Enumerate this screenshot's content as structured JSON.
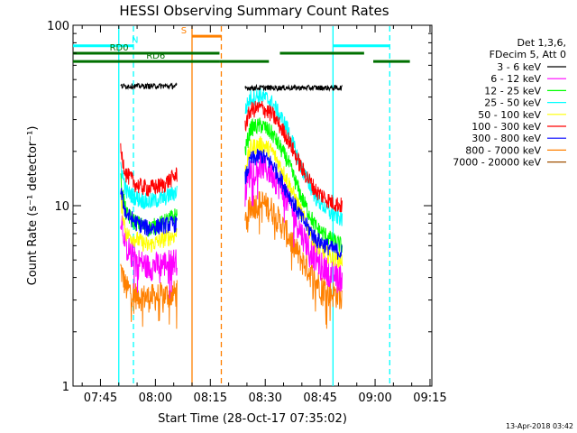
{
  "chart_data": {
    "type": "line",
    "title": "HESSI Observing Summary Count Rates",
    "xlabel": "Start Time (28-Oct-17 07:35:02)",
    "ylabel": "Count Rate (s⁻¹ detector⁻¹)",
    "yscale": "log",
    "ylim": [
      1,
      100
    ],
    "xlim_minutes": [
      37.5,
      135.5
    ],
    "x_ticks": [
      {
        "m": 45,
        "label": "07:45"
      },
      {
        "m": 60,
        "label": "08:00"
      },
      {
        "m": 75,
        "label": "08:15"
      },
      {
        "m": 90,
        "label": "08:30"
      },
      {
        "m": 105,
        "label": "08:45"
      },
      {
        "m": 120,
        "label": "09:00"
      },
      {
        "m": 135,
        "label": "09:15"
      }
    ],
    "y_ticks": [
      {
        "v": 1,
        "label": "1"
      },
      {
        "v": 10,
        "label": "10"
      },
      {
        "v": 100,
        "label": "100"
      }
    ],
    "legend": {
      "placement": "right",
      "header": [
        "Det 1,3,6,",
        "FDecim 5, Att 0"
      ]
    },
    "series": [
      {
        "name": "3 - 6 keV",
        "color": "#000000",
        "segments": [
          {
            "x": [
              50.5,
              57,
              64,
              66
            ],
            "y": [
              46,
              46,
              46,
              46
            ]
          },
          {
            "x": [
              84.5,
              92,
              100,
              107,
              111
            ],
            "y": [
              45,
              45,
              45,
              45,
              45
            ]
          }
        ]
      },
      {
        "name": "6 - 12 keV",
        "color": "#ff00ff",
        "segments": [
          {
            "x": [
              50.5,
              52,
              55,
              58,
              62,
              66
            ],
            "y": [
              9,
              6,
              5,
              4.6,
              4.8,
              5
            ]
          },
          {
            "x": [
              84.5,
              86,
              89,
              92,
              96,
              100,
              104,
              108,
              111
            ],
            "y": [
              12,
              16,
              17,
              15,
              11,
              7,
              5,
              4.2,
              4
            ]
          }
        ]
      },
      {
        "name": "12 - 25 keV",
        "color": "#00ff00",
        "segments": [
          {
            "x": [
              50.5,
              52,
              55,
              58,
              62,
              66
            ],
            "y": [
              14,
              9,
              8,
              7.5,
              8,
              9
            ]
          },
          {
            "x": [
              84.5,
              86,
              89,
              92,
              96,
              100,
              104,
              108,
              111
            ],
            "y": [
              20,
              27,
              28,
              25,
              18,
              11,
              7.5,
              6.5,
              6
            ]
          }
        ]
      },
      {
        "name": "25 - 50 keV",
        "color": "#00ffff",
        "segments": [
          {
            "x": [
              50.5,
              52,
              55,
              58,
              62,
              66
            ],
            "y": [
              17,
              12,
              11,
              10.5,
              11,
              12
            ]
          },
          {
            "x": [
              84.5,
              86,
              89,
              92,
              96,
              100,
              104,
              108,
              111
            ],
            "y": [
              34,
              40,
              41,
              37,
              27,
              16,
              11,
              9,
              8.5
            ]
          }
        ]
      },
      {
        "name": "50 - 100 keV",
        "color": "#ffff00",
        "segments": [
          {
            "x": [
              50.5,
              52,
              55,
              58,
              62,
              66
            ],
            "y": [
              11,
              7,
              6.5,
              6,
              6.5,
              7
            ]
          },
          {
            "x": [
              84.5,
              86,
              89,
              92,
              96,
              100,
              104,
              108,
              111
            ],
            "y": [
              16,
              21,
              22,
              20,
              14,
              9,
              6,
              5.2,
              5
            ]
          }
        ]
      },
      {
        "name": "100 - 300 keV",
        "color": "#ff0000",
        "segments": [
          {
            "x": [
              50.5,
              52,
              55,
              58,
              62,
              66
            ],
            "y": [
              20,
              15,
              13,
              12.5,
              13,
              15
            ]
          },
          {
            "x": [
              84.5,
              86,
              89,
              92,
              96,
              100,
              104,
              108,
              111
            ],
            "y": [
              28,
              34,
              35,
              32,
              24,
              16,
              12,
              10.5,
              10
            ]
          }
        ]
      },
      {
        "name": "300 - 800 keV",
        "color": "#0000ff",
        "segments": [
          {
            "x": [
              50.5,
              52,
              55,
              58,
              62,
              66
            ],
            "y": [
              12,
              9,
              8,
              7.5,
              7.8,
              8
            ]
          },
          {
            "x": [
              84.5,
              86,
              89,
              92,
              96,
              100,
              104,
              108,
              111
            ],
            "y": [
              14,
              18,
              19,
              17,
              12,
              8.5,
              6.5,
              5.8,
              5.5
            ]
          }
        ]
      },
      {
        "name": "800 - 7000 keV",
        "color": "#ff8000",
        "segments": [
          {
            "x": [
              50.5,
              52,
              55,
              58,
              62,
              66
            ],
            "y": [
              4.5,
              3.5,
              3.2,
              3.1,
              3.2,
              3.3
            ]
          },
          {
            "x": [
              84.5,
              86,
              89,
              92,
              96,
              100,
              104,
              108,
              111
            ],
            "y": [
              8,
              10,
              10.5,
              9.5,
              7,
              5,
              3.8,
              3.3,
              3.2
            ]
          }
        ]
      },
      {
        "name": "7000 - 20000 keV",
        "color": "#a05000",
        "segments": []
      }
    ],
    "markers": {
      "bars": [
        {
          "label": "N",
          "color": "#00ffff",
          "width": 3,
          "y": 77,
          "segments": [
            [
              37.5,
              54
            ],
            [
              108.5,
              124
            ]
          ]
        },
        {
          "label": "S",
          "color": "#ff8000",
          "width": 3,
          "y": 87,
          "segments": [
            [
              70,
              78
            ]
          ]
        },
        {
          "label": "RD0",
          "color": "#007000",
          "width": 3,
          "y": 70,
          "segments": [
            [
              37.5,
              77.5
            ],
            [
              94,
              117
            ]
          ]
        },
        {
          "label": "RD6",
          "color": "#007000",
          "width": 3,
          "y": 63,
          "segments": [
            [
              37.5,
              77.5
            ],
            [
              77.5,
              91
            ],
            [
              119.5,
              129.5
            ]
          ]
        }
      ],
      "bar_label_positions": {
        "N": [
          53.5,
          77
        ],
        "S": [
          67,
          87
        ],
        "RD0": [
          47.5,
          70
        ],
        "RD6": [
          57.5,
          63
        ]
      },
      "vlines": [
        {
          "x": 50.0,
          "color": "#00ffff",
          "dashed": false
        },
        {
          "x": 54.0,
          "color": "#00ffff",
          "dashed": true
        },
        {
          "x": 70.0,
          "color": "#ff8000",
          "dashed": false
        },
        {
          "x": 78.0,
          "color": "#ff8000",
          "dashed": true
        },
        {
          "x": 108.5,
          "color": "#00ffff",
          "dashed": false
        },
        {
          "x": 124.0,
          "color": "#00ffff",
          "dashed": true
        }
      ]
    },
    "timestamp": "13-Apr-2018 03:42"
  }
}
